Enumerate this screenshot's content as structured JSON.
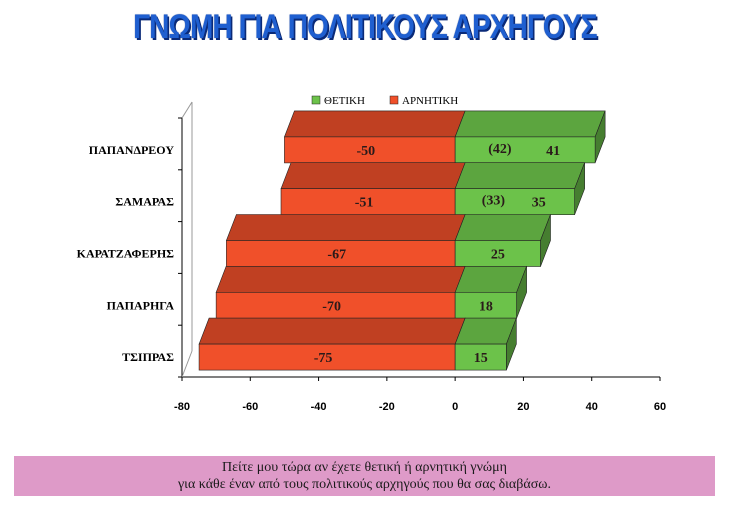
{
  "title": "ΓΝΩΜΗ ΓΙΑ ΠΟΛΙΤΙΚΟΥΣ ΑΡΧΗΓΟΥΣ",
  "question": {
    "line1": "Πείτε μου τώρα αν έχετε θετική ή αρνητική γνώμη",
    "line2": "για κάθε έναν από τους πολιτικούς αρχηγούς που θα σας διαβάσω."
  },
  "chart_data": {
    "type": "bar",
    "orientation": "horizontal",
    "stacking": "diverging",
    "categories": [
      "ΠΑΠΑΝΔΡΕΟΥ",
      "ΣΑΜΑΡΑΣ",
      "ΚΑΡΑΤΖΑΦΕΡΗΣ",
      "ΠΑΠΑΡΗΓΑ",
      "ΤΣΙΠΡΑΣ"
    ],
    "series": [
      {
        "name": "ΘΕΤΙΚΗ",
        "color": "#6cc24a",
        "values": [
          41,
          35,
          25,
          18,
          15
        ]
      },
      {
        "name": "ΑΡΝΗΤΙΚΗ",
        "color": "#f0502a",
        "values": [
          -50,
          -51,
          -67,
          -70,
          -75
        ]
      }
    ],
    "previous_positive": [
      "(42)",
      "(33)",
      "",
      "",
      ""
    ],
    "xlim": [
      -80,
      60
    ],
    "xticks": [
      -80,
      -60,
      -40,
      -20,
      0,
      20,
      40,
      60
    ],
    "legend_position": "top",
    "three_d": true,
    "grid": false
  }
}
